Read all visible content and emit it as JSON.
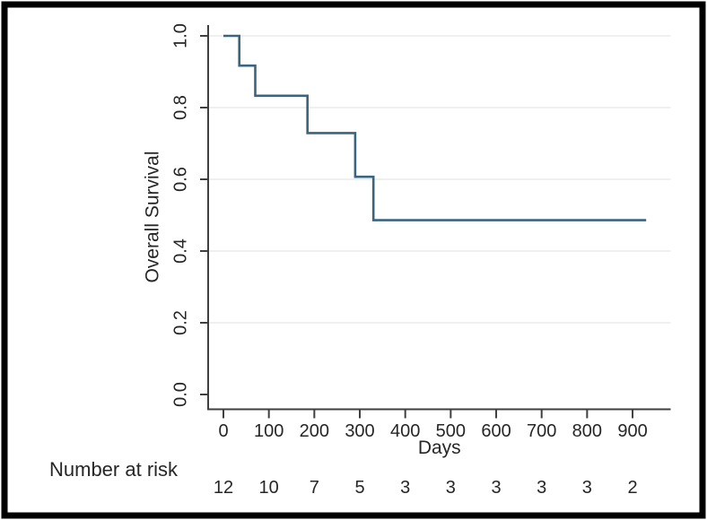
{
  "frame": {
    "border_color": "#000000",
    "background_color": "#ffffff"
  },
  "chart_data": {
    "type": "line",
    "subtype": "kaplan-meier-step",
    "title": "",
    "xlabel": "Days",
    "ylabel": "Overall Survival",
    "xlim": [
      0,
      983
    ],
    "ylim": [
      0.0,
      1.0
    ],
    "x_ticks": [
      0,
      100,
      200,
      300,
      400,
      500,
      600,
      700,
      800,
      900
    ],
    "x_tick_labels": [
      "0",
      "100",
      "200",
      "300",
      "400",
      "500",
      "600",
      "700",
      "800",
      "900"
    ],
    "y_ticks": [
      0.0,
      0.2,
      0.4,
      0.6,
      0.8,
      1.0
    ],
    "y_tick_labels": [
      "0.0",
      "0.2",
      "0.4",
      "0.6",
      "0.8",
      "1.0"
    ],
    "grid": "horizontal",
    "legend_position": "none",
    "line_color": "#3a6580",
    "series": [
      {
        "name": "Overall Survival",
        "step_points": [
          [
            0,
            1.0
          ],
          [
            35,
            0.917
          ],
          [
            70,
            0.833
          ],
          [
            185,
            0.729
          ],
          [
            290,
            0.607
          ],
          [
            330,
            0.486
          ],
          [
            930,
            0.486
          ]
        ]
      }
    ],
    "number_at_risk": {
      "label": "Number at risk",
      "times": [
        0,
        100,
        200,
        300,
        400,
        500,
        600,
        700,
        800,
        900
      ],
      "counts": [
        12,
        10,
        7,
        5,
        3,
        3,
        3,
        3,
        3,
        2
      ]
    }
  }
}
